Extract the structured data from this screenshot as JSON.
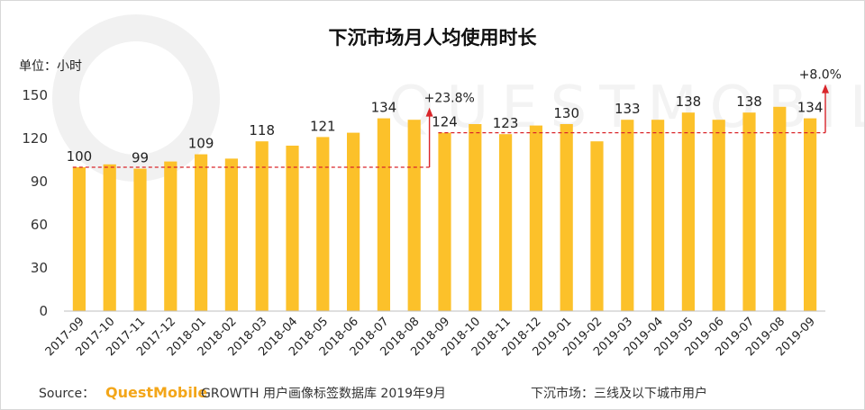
{
  "title": "下沉市场月人均使用时长",
  "unit_label": "单位：小时",
  "watermark": "QUESTMOBILE",
  "chart_data": {
    "type": "bar",
    "title": "下沉市场月人均使用时长",
    "xlabel": "",
    "ylabel": "单位：小时",
    "ylim": [
      0,
      150
    ],
    "yticks": [
      0,
      30,
      60,
      90,
      120,
      150
    ],
    "grid": false,
    "bar_color": "#fcc12a",
    "categories": [
      "2017-09",
      "2017-10",
      "2017-11",
      "2017-12",
      "2018-01",
      "2018-02",
      "2018-03",
      "2018-04",
      "2018-05",
      "2018-06",
      "2018-07",
      "2018-08",
      "2018-09",
      "2018-10",
      "2018-11",
      "2018-12",
      "2019-01",
      "2019-02",
      "2019-03",
      "2019-04",
      "2019-05",
      "2019-06",
      "2019-07",
      "2019-08",
      "2019-09"
    ],
    "values": [
      100,
      102,
      99,
      104,
      109,
      106,
      118,
      115,
      121,
      124,
      134,
      133,
      124,
      130,
      123,
      129,
      130,
      118,
      133,
      133,
      138,
      133,
      138,
      142,
      134
    ],
    "data_labels": [
      {
        "index": 0,
        "text": "100"
      },
      {
        "index": 2,
        "text": "99"
      },
      {
        "index": 4,
        "text": "109"
      },
      {
        "index": 6,
        "text": "118"
      },
      {
        "index": 8,
        "text": "121"
      },
      {
        "index": 10,
        "text": "134"
      },
      {
        "index": 12,
        "text": "124"
      },
      {
        "index": 14,
        "text": "123"
      },
      {
        "index": 16,
        "text": "130"
      },
      {
        "index": 18,
        "text": "133"
      },
      {
        "index": 20,
        "text": "138"
      },
      {
        "index": 22,
        "text": "138"
      },
      {
        "index": 24,
        "text": "134"
      }
    ],
    "annotations": [
      {
        "text": "+23.8%",
        "from_index": 0,
        "to_index": 12,
        "base_value": 100
      },
      {
        "text": "+8.0%",
        "from_index": 12,
        "to_index": 24,
        "base_value": 124
      }
    ],
    "reference_line_color": "#d9252a"
  },
  "footer": {
    "source_label": "Source：",
    "brand": "QuestMobile",
    "source_text": "GROWTH 用户画像标签数据库  2019年9月",
    "note": "下沉市场：三线及以下城市用户"
  }
}
